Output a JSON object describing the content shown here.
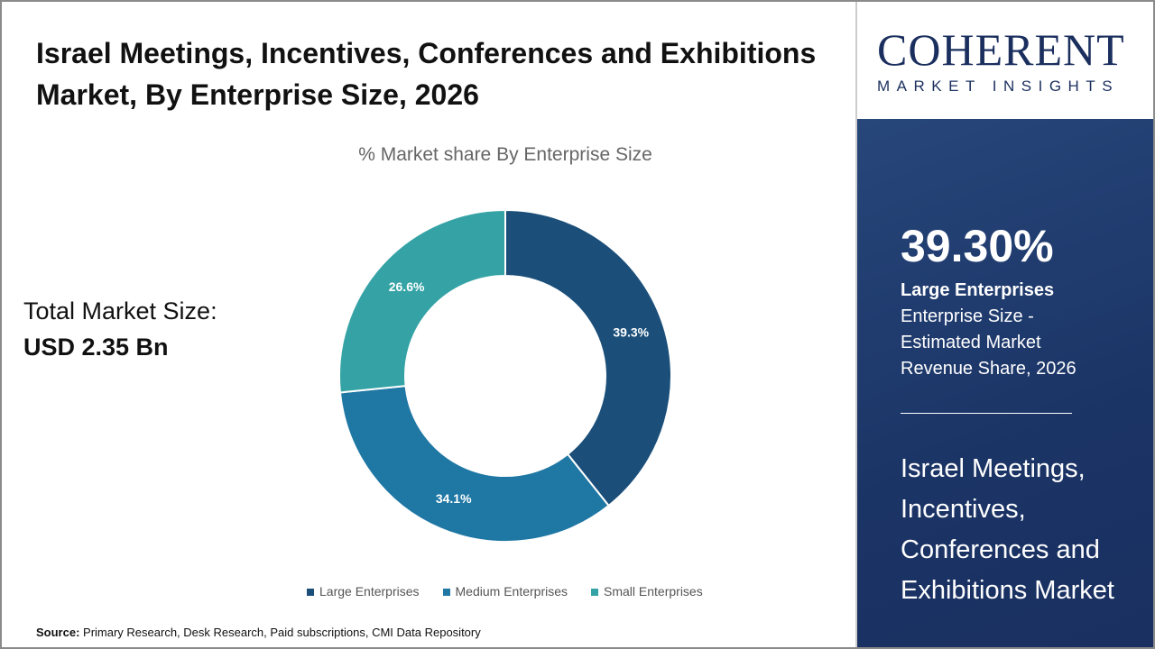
{
  "title": "Israel Meetings, Incentives, Conferences and Exhibitions Market, By Enterprise Size, 2026",
  "total": {
    "label": "Total Market Size:",
    "value": "USD 2.35 Bn"
  },
  "source": {
    "label": "Source:",
    "text": "Primary Research, Desk Research, Paid subscriptions, CMI Data Repository"
  },
  "logo": {
    "big": "COHERENT",
    "small": "MARKET INSIGHTS"
  },
  "panel": {
    "percent": "39.30%",
    "segment": "Large Enterprises",
    "desc1": "Enterprise Size -",
    "desc2": "Estimated Market",
    "desc3": "Revenue Share, 2026",
    "market": "Israel Meetings, Incentives, Conferences and Exhibitions Market"
  },
  "chart_data": {
    "type": "pie",
    "donut": true,
    "title": "% Market share By Enterprise Size",
    "categories": [
      "Large Enterprises",
      "Medium Enterprises",
      "Small Enterprises"
    ],
    "values": [
      39.3,
      34.1,
      26.6
    ],
    "labels": [
      "39.3%",
      "34.1%",
      "26.6%"
    ],
    "colors": [
      "#1b4f7a",
      "#1f77a4",
      "#35a3a5"
    ],
    "legend": "bottom"
  }
}
